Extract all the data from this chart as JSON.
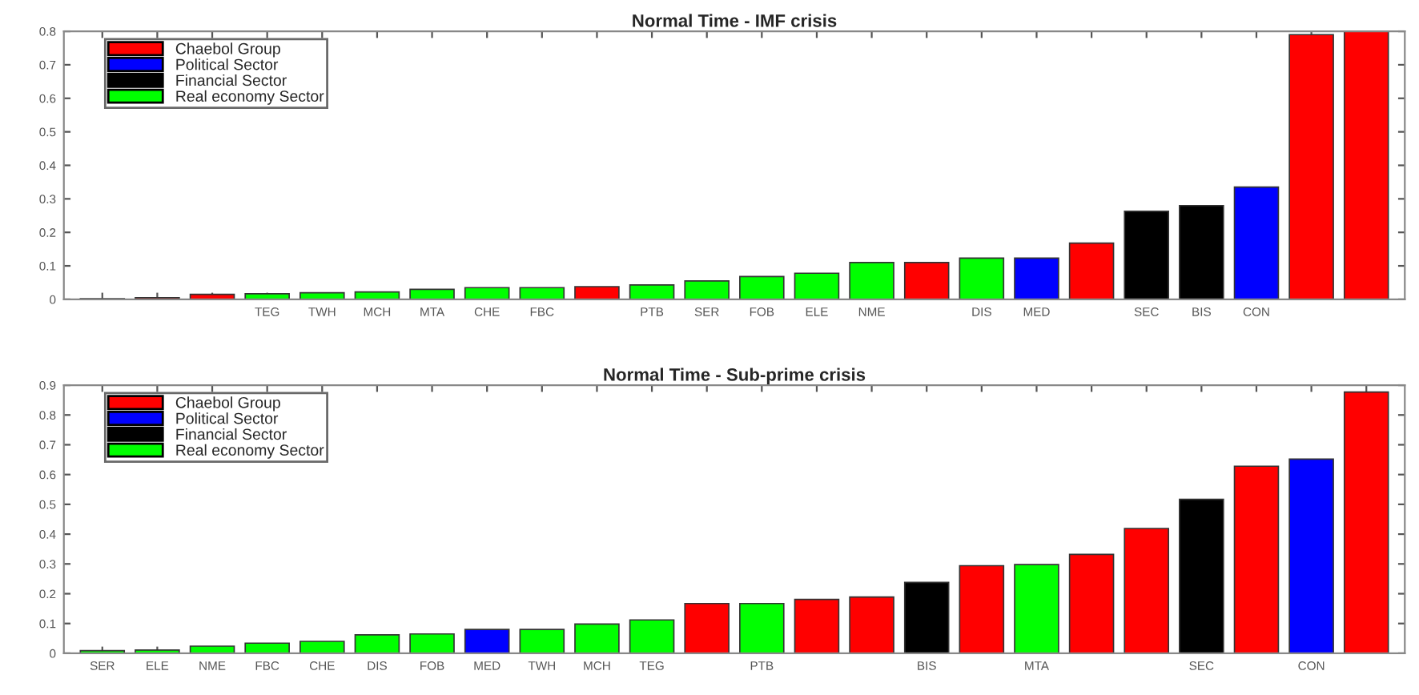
{
  "chart_data": [
    {
      "type": "bar",
      "title": "Normal Time - IMF crisis",
      "stacked": true,
      "legend": "top left",
      "grid": false,
      "categories": [
        null,
        null,
        null,
        "TEG",
        "TWH",
        "MCH",
        "MTA",
        "CHE",
        "FBC",
        null,
        "PTB",
        "SER",
        "FOB",
        "ELE",
        "NME",
        null,
        "DIS",
        "MED",
        null,
        "SEC",
        "BIS",
        "CON",
        null,
        null
      ],
      "ylim": [
        0,
        0.8
      ],
      "yticks": [
        0,
        0.1,
        0.2,
        0.3,
        0.4,
        0.5,
        0.6,
        0.7,
        0.8
      ],
      "series": [
        {
          "name": "Chaebol Group",
          "color": "#ff0000",
          "values": [
            0.002,
            0.005,
            0.015,
            null,
            null,
            null,
            null,
            null,
            null,
            0.038,
            null,
            null,
            null,
            null,
            null,
            0.11,
            null,
            null,
            0.168,
            null,
            null,
            null,
            0.79,
            0.8
          ]
        },
        {
          "name": "Political Sector",
          "color": "#0000ff",
          "values": [
            null,
            null,
            null,
            null,
            null,
            null,
            null,
            null,
            null,
            null,
            null,
            null,
            null,
            null,
            null,
            null,
            null,
            0.123,
            null,
            null,
            null,
            0.335,
            null,
            null
          ]
        },
        {
          "name": "Financial Sector",
          "color": "#000000",
          "values": [
            null,
            null,
            null,
            null,
            null,
            null,
            null,
            null,
            null,
            null,
            null,
            null,
            null,
            null,
            null,
            null,
            null,
            null,
            null,
            0.263,
            0.28,
            null,
            null,
            null
          ]
        },
        {
          "name": "Real economy Sector",
          "color": "#00ff00",
          "values": [
            null,
            null,
            null,
            0.017,
            0.02,
            0.022,
            0.03,
            0.035,
            0.035,
            null,
            0.043,
            0.055,
            0.068,
            0.078,
            0.11,
            null,
            0.123,
            null,
            null,
            null,
            null,
            null,
            null,
            null
          ]
        }
      ]
    },
    {
      "type": "bar",
      "title": "Normal Time - Sub-prime crisis",
      "stacked": true,
      "legend": "top left",
      "grid": false,
      "categories": [
        "SER",
        "ELE",
        "NME",
        "FBC",
        "CHE",
        "DIS",
        "FOB",
        "MED",
        "TWH",
        "MCH",
        "TEG",
        null,
        "PTB",
        null,
        null,
        "BIS",
        null,
        "MTA",
        null,
        null,
        "SEC",
        null,
        "CON",
        null
      ],
      "ylim": [
        0,
        0.9
      ],
      "yticks": [
        0,
        0.1,
        0.2,
        0.3,
        0.4,
        0.5,
        0.6,
        0.7,
        0.8,
        0.9
      ],
      "series": [
        {
          "name": "Chaebol Group",
          "color": "#ff0000",
          "values": [
            null,
            null,
            null,
            null,
            null,
            null,
            null,
            null,
            null,
            null,
            null,
            0.167,
            null,
            0.181,
            0.189,
            null,
            0.294,
            null,
            0.332,
            0.419,
            null,
            0.628,
            null,
            0.877
          ]
        },
        {
          "name": "Political Sector",
          "color": "#0000ff",
          "values": [
            null,
            null,
            null,
            null,
            null,
            null,
            null,
            0.08,
            null,
            null,
            null,
            null,
            null,
            null,
            null,
            null,
            null,
            null,
            null,
            null,
            null,
            null,
            0.652,
            null
          ]
        },
        {
          "name": "Financial Sector",
          "color": "#000000",
          "values": [
            null,
            null,
            null,
            null,
            null,
            null,
            null,
            null,
            null,
            null,
            null,
            null,
            null,
            null,
            null,
            0.238,
            null,
            null,
            null,
            null,
            0.517,
            null,
            null,
            null
          ]
        },
        {
          "name": "Real economy Sector",
          "color": "#00ff00",
          "values": [
            0.009,
            0.011,
            0.024,
            0.034,
            0.04,
            0.062,
            0.065,
            null,
            0.08,
            0.098,
            0.112,
            null,
            0.167,
            null,
            null,
            null,
            null,
            0.298,
            null,
            null,
            null,
            null,
            null,
            null
          ]
        }
      ]
    }
  ]
}
